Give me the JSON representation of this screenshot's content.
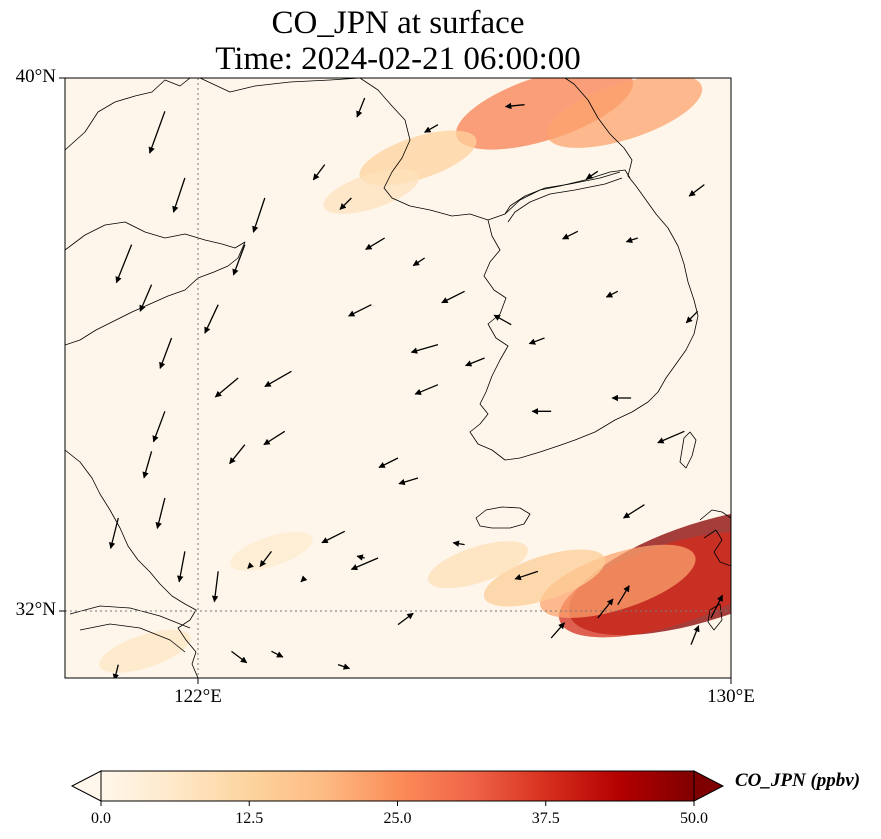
{
  "title": {
    "line1": "CO_JPN at surface",
    "line2": "Time: 2024-02-21 06:00:00"
  },
  "map": {
    "extent": {
      "lon_min": 120,
      "lon_max": 130,
      "lat_min": 31,
      "lat_max": 40
    },
    "lat_ticks": [
      {
        "value": 40,
        "label": "40°N"
      },
      {
        "value": 32,
        "label": "32°N"
      }
    ],
    "lon_ticks": [
      {
        "value": 122,
        "label": "122°E"
      },
      {
        "value": 130,
        "label": "130°E"
      }
    ],
    "gridlines": {
      "lon": [
        122
      ],
      "lat": [
        32
      ],
      "style": "dotted"
    },
    "plumes": [
      {
        "lon": 127.2,
        "lat": 39.55,
        "value": 27
      },
      {
        "lon": 128.4,
        "lat": 39.5,
        "value": 22
      },
      {
        "lon": 125.3,
        "lat": 38.8,
        "value": 13
      },
      {
        "lon": 124.6,
        "lat": 38.3,
        "value": 8
      },
      {
        "lon": 129.6,
        "lat": 32.6,
        "value": 49
      },
      {
        "lon": 129.1,
        "lat": 32.4,
        "value": 38
      },
      {
        "lon": 128.3,
        "lat": 32.45,
        "value": 22
      },
      {
        "lon": 127.2,
        "lat": 32.5,
        "value": 14
      },
      {
        "lon": 126.2,
        "lat": 32.7,
        "value": 9
      },
      {
        "lon": 121.2,
        "lat": 31.4,
        "value": 7
      },
      {
        "lon": 123.1,
        "lat": 32.9,
        "value": 5
      }
    ],
    "wind_vectors": [
      [
        121.5,
        39.5,
        -0.4,
        -1.1
      ],
      [
        121.0,
        37.5,
        -0.4,
        -1.0
      ],
      [
        121.8,
        38.5,
        -0.3,
        -0.9
      ],
      [
        123.0,
        38.2,
        -0.3,
        -0.9
      ],
      [
        122.7,
        37.5,
        -0.3,
        -0.8
      ],
      [
        122.3,
        36.6,
        -0.35,
        -0.75
      ],
      [
        121.6,
        36.1,
        -0.3,
        -0.8
      ],
      [
        121.3,
        36.9,
        -0.3,
        -0.7
      ],
      [
        122.6,
        35.5,
        -0.6,
        -0.5
      ],
      [
        123.4,
        35.6,
        -0.7,
        -0.4
      ],
      [
        124.6,
        36.6,
        -0.6,
        -0.3
      ],
      [
        125.6,
        36.0,
        -0.7,
        -0.2
      ],
      [
        125.6,
        35.4,
        -0.6,
        -0.25
      ],
      [
        123.3,
        34.7,
        -0.55,
        -0.35
      ],
      [
        122.7,
        34.5,
        -0.4,
        -0.5
      ],
      [
        121.5,
        35.0,
        -0.3,
        -0.8
      ],
      [
        121.3,
        34.4,
        -0.2,
        -0.7
      ],
      [
        121.5,
        33.7,
        -0.2,
        -0.8
      ],
      [
        120.8,
        33.4,
        -0.2,
        -0.8
      ],
      [
        121.8,
        32.9,
        -0.15,
        -0.8
      ],
      [
        122.3,
        32.6,
        -0.1,
        -0.8
      ],
      [
        123.1,
        32.9,
        -0.3,
        -0.4
      ],
      [
        124.2,
        33.2,
        -0.6,
        -0.3
      ],
      [
        124.7,
        32.8,
        -0.7,
        -0.3
      ],
      [
        125.3,
        34.0,
        -0.5,
        -0.15
      ],
      [
        125.0,
        34.3,
        -0.5,
        -0.25
      ],
      [
        126.3,
        35.8,
        -0.5,
        -0.2
      ],
      [
        126.0,
        36.8,
        -0.6,
        -0.3
      ],
      [
        127.2,
        36.1,
        -0.4,
        -0.15
      ],
      [
        127.3,
        35.0,
        -0.5,
        0.0
      ],
      [
        128.5,
        35.2,
        -0.5,
        0.0
      ],
      [
        129.3,
        34.7,
        -0.7,
        -0.3
      ],
      [
        128.7,
        33.6,
        -0.55,
        -0.35
      ],
      [
        127.1,
        32.6,
        -0.6,
        -0.2
      ],
      [
        126.0,
        33.0,
        -0.3,
        0.05
      ],
      [
        124.5,
        32.8,
        -0.2,
        0.05
      ],
      [
        123.6,
        32.5,
        -0.1,
        -0.1
      ],
      [
        122.8,
        32.7,
        -0.1,
        -0.1
      ],
      [
        125.0,
        31.8,
        0.4,
        0.3
      ],
      [
        127.3,
        31.6,
        0.35,
        0.4
      ],
      [
        128.0,
        31.9,
        0.4,
        0.5
      ],
      [
        128.3,
        32.1,
        0.3,
        0.5
      ],
      [
        129.4,
        31.5,
        0.2,
        0.5
      ],
      [
        129.7,
        31.9,
        0.3,
        0.6
      ],
      [
        126.7,
        36.3,
        -0.45,
        0.25
      ],
      [
        128.3,
        36.8,
        -0.3,
        -0.15
      ],
      [
        128.6,
        37.6,
        -0.3,
        -0.1
      ],
      [
        128.0,
        38.6,
        -0.3,
        -0.2
      ],
      [
        127.7,
        37.7,
        -0.4,
        -0.2
      ],
      [
        129.6,
        38.4,
        -0.4,
        -0.3
      ],
      [
        129.5,
        36.5,
        -0.3,
        -0.3
      ],
      [
        126.9,
        39.6,
        -0.5,
        -0.05
      ],
      [
        125.6,
        39.3,
        -0.35,
        -0.2
      ],
      [
        124.5,
        39.7,
        -0.2,
        -0.5
      ],
      [
        124.3,
        38.2,
        -0.3,
        -0.3
      ],
      [
        123.9,
        38.7,
        -0.3,
        -0.4
      ],
      [
        124.8,
        37.6,
        -0.5,
        -0.3
      ],
      [
        125.4,
        37.3,
        -0.3,
        -0.2
      ],
      [
        120.8,
        31.2,
        -0.1,
        -0.4
      ],
      [
        122.5,
        31.4,
        0.4,
        -0.3
      ],
      [
        123.1,
        31.4,
        0.3,
        -0.15
      ],
      [
        124.1,
        31.2,
        0.3,
        -0.1
      ]
    ]
  },
  "colorbar": {
    "title": "CO_JPN (ppbv)",
    "min": 0,
    "max": 50,
    "colormap": "OrRd",
    "extend": "both",
    "stops": [
      "#fff7ec",
      "#fee8c8",
      "#fdd49e",
      "#fdbb84",
      "#fc8d59",
      "#ef6548",
      "#d7301f",
      "#b30000",
      "#7f0000"
    ],
    "ticks": [
      {
        "value": 0,
        "label": "0.0"
      },
      {
        "value": 12.5,
        "label": "12.5"
      },
      {
        "value": 25,
        "label": "25.0"
      },
      {
        "value": 37.5,
        "label": "37.5"
      },
      {
        "value": 50,
        "label": "50.0"
      }
    ]
  }
}
